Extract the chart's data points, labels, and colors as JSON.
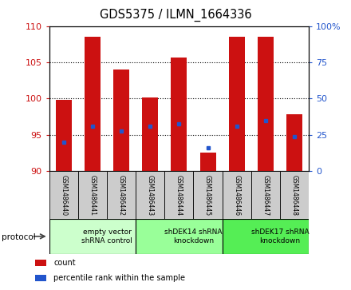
{
  "title": "GDS5375 / ILMN_1664336",
  "samples": [
    "GSM1486440",
    "GSM1486441",
    "GSM1486442",
    "GSM1486443",
    "GSM1486444",
    "GSM1486445",
    "GSM1486446",
    "GSM1486447",
    "GSM1486448"
  ],
  "count_values": [
    99.8,
    108.5,
    104.0,
    100.2,
    105.7,
    92.5,
    108.5,
    108.5,
    97.8
  ],
  "percentile_values": [
    94.0,
    96.2,
    95.5,
    96.2,
    96.5,
    93.2,
    96.2,
    97.0,
    94.8
  ],
  "ylim_left": [
    90,
    110
  ],
  "ylim_right": [
    0,
    100
  ],
  "yticks_left": [
    90,
    95,
    100,
    105,
    110
  ],
  "yticks_right": [
    0,
    25,
    50,
    75,
    100
  ],
  "bar_color": "#cc1111",
  "marker_color": "#2255cc",
  "bar_bottom": 90,
  "bar_width": 0.55,
  "protocols": [
    {
      "label": "empty vector\nshRNA control",
      "start": 0,
      "end": 3,
      "color": "#ccffcc"
    },
    {
      "label": "shDEK14 shRNA\nknockdown",
      "start": 3,
      "end": 6,
      "color": "#99ff99"
    },
    {
      "label": "shDEK17 shRNA\nknockdown",
      "start": 6,
      "end": 9,
      "color": "#55ee55"
    }
  ],
  "legend_items": [
    {
      "label": "count",
      "color": "#cc1111"
    },
    {
      "label": "percentile rank within the sample",
      "color": "#2255cc"
    }
  ],
  "protocol_label": "protocol",
  "background_tick_box": "#cccccc",
  "grid_color": "#000000"
}
